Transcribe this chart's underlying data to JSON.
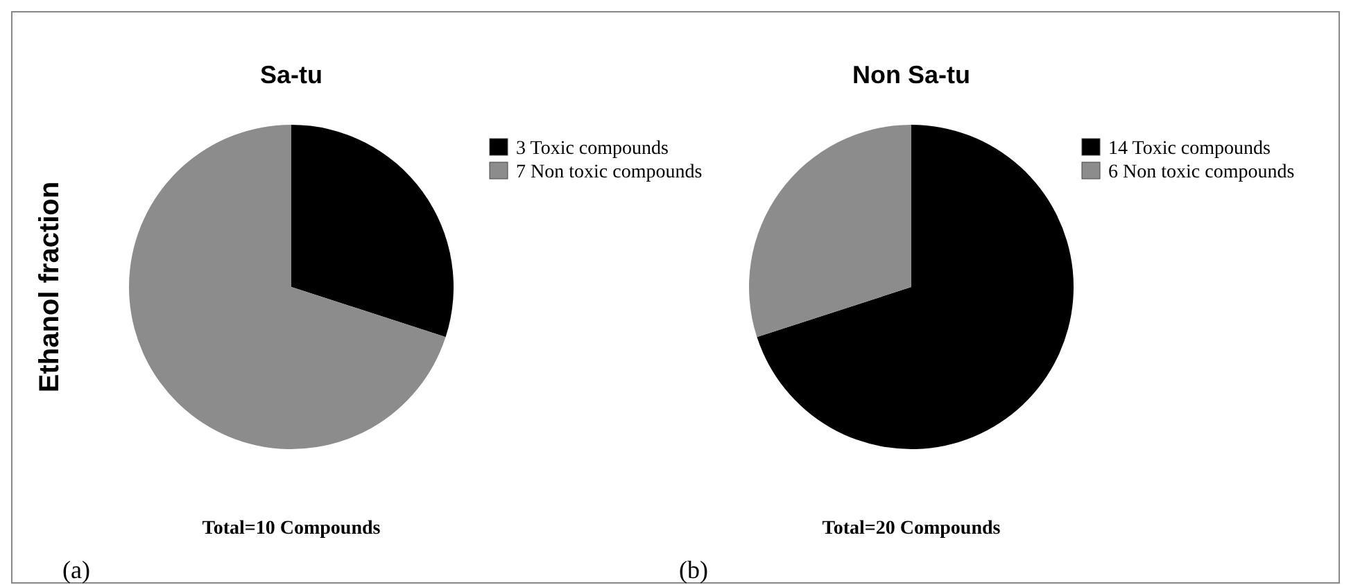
{
  "chart_data": [
    {
      "type": "pie",
      "title": "Sa-tu",
      "ylabel": "Ethanol fraction",
      "categories": [
        "3 Toxic compounds",
        "7 Non toxic compounds"
      ],
      "values": [
        30,
        70
      ],
      "colors": [
        "#000000",
        "#8c8c8c"
      ],
      "legend": "right",
      "annotations": [
        "Total=10 Compounds",
        "(a)"
      ]
    },
    {
      "type": "pie",
      "title": "Non Sa-tu",
      "categories": [
        "14 Toxic compounds",
        "6 Non toxic compounds"
      ],
      "values": [
        70,
        30
      ],
      "colors": [
        "#000000",
        "#8c8c8c"
      ],
      "legend": "right",
      "annotations": [
        "Total=20 Compounds",
        "(b)"
      ]
    }
  ]
}
